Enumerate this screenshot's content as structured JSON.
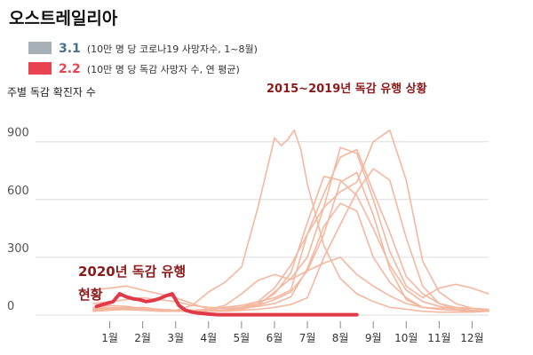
{
  "title": "오스트레일리아",
  "legend": [
    {
      "value": "3.1",
      "desc": "(10만 명 당 코로나19 사망자수, 1~8월)",
      "color": "#a6b0b6",
      "value_color": "#4a6f8f"
    },
    {
      "value": "2.2",
      "desc": "(10만 명 당 독감 사망자 수, 연 평균)",
      "color": "#e84350",
      "value_color": "#e84350"
    }
  ],
  "colors": {
    "history": "#f4b7a0",
    "current": "#e03a48",
    "grid": "#dcdcdc",
    "annotation": "#8b1a1a"
  },
  "chart_data": {
    "type": "line",
    "ylabel": "주별 독감 확진자 수",
    "ylim": [
      0,
      1000
    ],
    "yticks": [
      0,
      300,
      600,
      900
    ],
    "ytick_labels": [
      "0",
      "300",
      "600",
      "900"
    ],
    "xlim": [
      0.5,
      12.5
    ],
    "x_ticks": [
      1,
      2,
      3,
      4,
      5,
      6,
      7,
      8,
      9,
      10,
      11,
      12
    ],
    "x_tick_labels": [
      "1월",
      "2월",
      "3월",
      "4월",
      "5월",
      "6월",
      "7월",
      "8월",
      "9월",
      "10월",
      "11월",
      "12월"
    ],
    "annotations": {
      "history": "2015~2019년 독감 유행 상황",
      "current_line1": "2020년 독감 유행",
      "current_line2": "현황"
    },
    "series": [
      {
        "x": [
          0.5,
          1.0,
          1.5,
          2.0,
          2.5,
          3.0,
          3.5,
          4.0,
          4.5,
          5.0,
          5.5,
          6.0,
          6.5,
          7.0,
          7.5,
          8.0,
          8.5,
          9.0,
          9.5,
          10.0,
          10.5,
          11.0,
          11.5,
          12.0,
          12.5
        ],
        "values": [
          30,
          40,
          35,
          30,
          28,
          25,
          20,
          30,
          50,
          110,
          180,
          210,
          185,
          230,
          270,
          300,
          210,
          150,
          100,
          60,
          40,
          30,
          25,
          20,
          20
        ]
      },
      {
        "x": [
          0.5,
          1.0,
          1.5,
          2.0,
          2.5,
          3.0,
          3.5,
          4.0,
          4.5,
          5.0,
          5.5,
          6.0,
          6.2,
          6.4,
          6.6,
          6.8,
          7.0,
          7.5,
          8.0,
          8.5,
          9.0,
          9.5,
          10.0,
          10.5,
          11.0,
          11.5,
          12.0,
          12.5
        ],
        "values": [
          20,
          30,
          35,
          40,
          30,
          25,
          50,
          120,
          170,
          250,
          560,
          920,
          880,
          910,
          960,
          860,
          680,
          360,
          190,
          110,
          70,
          40,
          30,
          20,
          15,
          15,
          15,
          20
        ]
      },
      {
        "x": [
          0.5,
          1.0,
          1.5,
          2.0,
          2.5,
          3.0,
          3.5,
          4.0,
          4.5,
          5.0,
          5.5,
          6.0,
          6.5,
          7.0,
          7.5,
          8.0,
          8.5,
          9.0,
          9.5,
          10.0,
          10.5,
          11.0,
          11.5,
          12.0,
          12.5
        ],
        "values": [
          40,
          50,
          45,
          35,
          30,
          25,
          20,
          20,
          25,
          35,
          45,
          60,
          95,
          240,
          460,
          580,
          540,
          300,
          170,
          90,
          40,
          30,
          25,
          20,
          20
        ]
      },
      {
        "x": [
          0.5,
          1.0,
          1.5,
          2.0,
          2.5,
          3.0,
          3.5,
          4.0,
          4.5,
          5.0,
          5.5,
          6.0,
          6.5,
          7.0,
          7.5,
          8.0,
          8.5,
          9.0,
          9.5,
          10.0,
          10.5,
          11.0,
          11.5,
          12.0,
          12.5
        ],
        "values": [
          60,
          70,
          80,
          90,
          80,
          70,
          50,
          40,
          35,
          40,
          50,
          80,
          120,
          230,
          420,
          690,
          740,
          520,
          240,
          80,
          40,
          35,
          40,
          35,
          30
        ]
      },
      {
        "x": [
          0.5,
          1.0,
          1.5,
          2.0,
          2.5,
          3.0,
          3.5,
          4.0,
          4.5,
          5.0,
          5.5,
          6.0,
          6.5,
          7.0,
          7.5,
          8.0,
          8.5,
          9.0,
          9.5,
          10.0,
          10.5,
          11.0,
          11.5,
          12.0,
          12.5
        ],
        "values": [
          130,
          140,
          150,
          130,
          110,
          90,
          60,
          30,
          25,
          30,
          50,
          120,
          190,
          300,
          560,
          870,
          840,
          600,
          330,
          150,
          90,
          140,
          160,
          140,
          110
        ]
      },
      {
        "x": [
          0.5,
          1.0,
          1.5,
          2.0,
          2.5,
          3.0,
          3.5,
          4.0,
          4.5,
          5.0,
          5.5,
          6.0,
          6.5,
          7.0,
          7.5,
          8.0,
          8.5,
          9.0,
          9.5,
          10.0,
          10.5,
          11.0,
          11.5,
          12.0,
          12.5
        ],
        "values": [
          20,
          25,
          30,
          25,
          20,
          20,
          25,
          30,
          40,
          50,
          70,
          90,
          130,
          420,
          630,
          820,
          860,
          640,
          430,
          200,
          110,
          60,
          40,
          25,
          20
        ]
      },
      {
        "x": [
          0.5,
          1.0,
          1.5,
          2.0,
          2.5,
          3.0,
          3.5,
          4.0,
          4.5,
          5.0,
          5.5,
          6.0,
          6.5,
          7.0,
          7.5,
          8.0,
          8.5,
          9.0,
          9.5,
          10.0,
          10.5,
          11.0,
          11.5,
          12.0,
          12.5
        ],
        "values": [
          30,
          35,
          40,
          35,
          30,
          25,
          25,
          20,
          20,
          25,
          30,
          40,
          55,
          90,
          300,
          470,
          640,
          760,
          700,
          400,
          150,
          60,
          30,
          20,
          20
        ]
      },
      {
        "x": [
          0.5,
          1.0,
          1.5,
          2.0,
          2.5,
          3.0,
          3.5,
          4.0,
          4.5,
          5.0,
          5.5,
          6.0,
          6.5,
          7.0,
          7.5,
          8.0,
          8.5,
          9.0,
          9.5,
          10.0,
          10.5,
          11.0,
          11.5,
          12.0,
          12.5
        ],
        "values": [
          35,
          40,
          38,
          32,
          28,
          22,
          20,
          20,
          25,
          35,
          60,
          110,
          220,
          480,
          720,
          700,
          620,
          450,
          260,
          130,
          70,
          45,
          30,
          22,
          20
        ]
      },
      {
        "x": [
          0.5,
          1.0,
          1.5,
          2.0,
          2.5,
          3.0,
          3.5,
          4.0,
          4.5,
          5.0,
          5.5,
          6.0,
          6.5,
          7.0,
          7.5,
          8.0,
          8.5,
          9.0,
          9.5,
          10.0,
          10.5,
          11.0,
          11.5,
          12.0,
          12.5
        ],
        "values": [
          25,
          30,
          28,
          25,
          22,
          20,
          20,
          22,
          28,
          40,
          70,
          140,
          260,
          420,
          560,
          640,
          690,
          900,
          960,
          700,
          280,
          120,
          60,
          35,
          25
        ]
      }
    ],
    "current": {
      "name": "2020",
      "x": [
        0.6,
        0.9,
        1.1,
        1.3,
        1.5,
        1.7,
        1.9,
        2.1,
        2.3,
        2.5,
        2.7,
        2.9,
        3.1,
        3.3,
        3.5,
        3.7,
        4.0,
        4.3,
        4.6,
        5.0,
        6.0,
        7.0,
        8.0,
        8.5
      ],
      "values": [
        45,
        60,
        70,
        110,
        95,
        85,
        80,
        70,
        75,
        85,
        100,
        110,
        50,
        25,
        15,
        10,
        5,
        2,
        2,
        2,
        2,
        2,
        2,
        2
      ]
    }
  }
}
